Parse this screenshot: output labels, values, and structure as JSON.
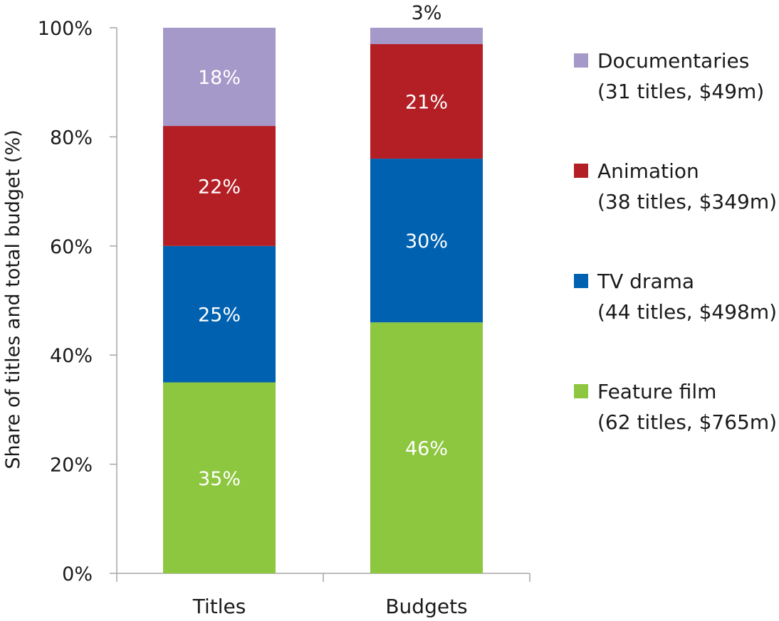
{
  "chart_data": {
    "type": "stacked-bar",
    "title": "",
    "xlabel": "",
    "ylabel": "Share of titles and total budget (%)",
    "ylim": [
      0,
      100
    ],
    "yticks": [
      "0%",
      "20%",
      "40%",
      "60%",
      "80%",
      "100%"
    ],
    "categories": [
      "Titles",
      "Budgets"
    ],
    "series": [
      {
        "name": "Feature film",
        "legend_detail": "(62 titles, $765m)",
        "color": "#8dc63f",
        "values": [
          35,
          46
        ],
        "labels": [
          "35%",
          "46%"
        ]
      },
      {
        "name": "TV drama",
        "legend_detail": "(44 titles, $498m)",
        "color": "#0061b0",
        "values": [
          25,
          30
        ],
        "labels": [
          "25%",
          "30%"
        ]
      },
      {
        "name": "Animation",
        "legend_detail": "(38 titles, $349m)",
        "color": "#b31f25",
        "values": [
          22,
          21
        ],
        "labels": [
          "22%",
          "21%"
        ]
      },
      {
        "name": "Documentaries",
        "legend_detail": "(31 titles, $49m)",
        "color": "#a599c9",
        "values": [
          18,
          3
        ],
        "labels": [
          "18%",
          "3%"
        ]
      }
    ],
    "label_colors": {
      "inside": "#ffffff",
      "outside": "#1a1a1a"
    },
    "legend_position": "right"
  }
}
